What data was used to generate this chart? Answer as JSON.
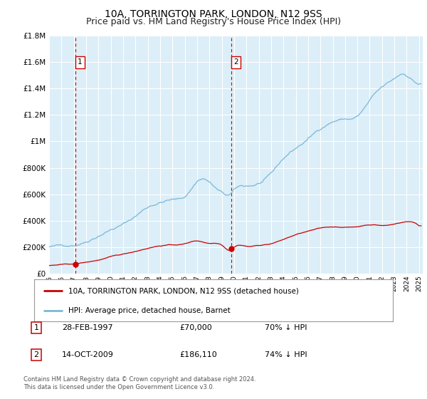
{
  "title": "10A, TORRINGTON PARK, LONDON, N12 9SS",
  "subtitle": "Price paid vs. HM Land Registry's House Price Index (HPI)",
  "legend_line1": "10A, TORRINGTON PARK, LONDON, N12 9SS (detached house)",
  "legend_line2": "HPI: Average price, detached house, Barnet",
  "table": [
    {
      "num": "1",
      "date": "28-FEB-1997",
      "price": "£70,000",
      "hpi": "70% ↓ HPI"
    },
    {
      "num": "2",
      "date": "14-OCT-2009",
      "price": "£186,110",
      "hpi": "74% ↓ HPI"
    }
  ],
  "footnote": "Contains HM Land Registry data © Crown copyright and database right 2024.\nThis data is licensed under the Open Government Licence v3.0.",
  "sale_points": [
    {
      "year": 1997.15,
      "price": 70000
    },
    {
      "year": 2009.79,
      "price": 186110
    }
  ],
  "sale_labels": [
    "1",
    "2"
  ],
  "hpi_color": "#7ab8d9",
  "sale_color": "#cc0000",
  "vline_color": "#cc0000",
  "background_color": "#dceef8",
  "plot_bg_color": "#dceef8",
  "grid_color": "#ffffff",
  "ylim": [
    0,
    1800000
  ],
  "xlim_start": 1995.0,
  "xlim_end": 2025.3,
  "yticks": [
    0,
    200000,
    400000,
    600000,
    800000,
    1000000,
    1200000,
    1400000,
    1600000,
    1800000
  ],
  "ytick_labels": [
    "£0",
    "£200K",
    "£400K",
    "£600K",
    "£800K",
    "£1M",
    "£1.2M",
    "£1.4M",
    "£1.6M",
    "£1.8M"
  ],
  "title_fontsize": 10,
  "subtitle_fontsize": 9
}
